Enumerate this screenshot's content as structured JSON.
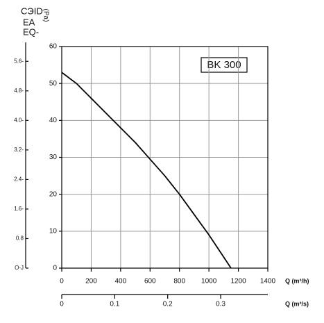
{
  "chart_data": {
    "type": "line",
    "annotation": "BK 300",
    "xlabel": "Q (m³/h)",
    "x2label": "Q (m³/s)",
    "ylabel": "(Pa)",
    "y2label_lines": [
      "CЭID",
      "EA",
      "EQ-"
    ],
    "x": [
      0,
      100,
      200,
      300,
      400,
      500,
      600,
      700,
      800,
      900,
      1000,
      1100,
      1150
    ],
    "values": [
      53,
      50,
      46,
      42,
      38,
      34,
      29.5,
      25,
      20,
      14.5,
      9,
      3,
      0
    ],
    "color": "#000000",
    "xlim": [
      0,
      1400
    ],
    "xticks": [
      0,
      200,
      400,
      600,
      800,
      1000,
      1200,
      1400
    ],
    "ylim": [
      0,
      60
    ],
    "yticks": [
      0,
      10,
      20,
      30,
      40,
      50,
      60
    ],
    "y2lim": [
      0,
      6
    ],
    "y2ticks": [
      {
        "value": 0,
        "label": "O-J"
      },
      0.8,
      {
        "value": 1.6,
        "label": "1.6-"
      },
      {
        "value": 2.4,
        "label": "2.4-"
      },
      {
        "value": 3.2,
        "label": "3.2-"
      },
      {
        "value": 4.0,
        "label": "4.0-"
      },
      {
        "value": 4.8,
        "label": "4.8-"
      },
      {
        "value": 5.6,
        "label": "5.6-"
      }
    ],
    "x2lim": [
      0,
      0.389
    ],
    "x2ticks": [
      0,
      0.1,
      0.2,
      0.3
    ],
    "grid": true
  }
}
